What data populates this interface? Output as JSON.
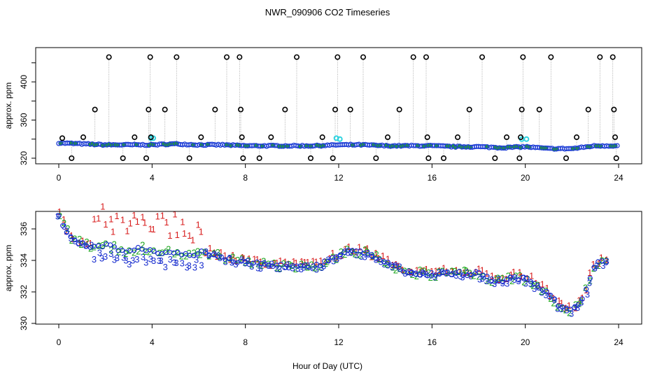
{
  "chart_data": [
    {
      "type": "scatter",
      "panel": "top",
      "title": "NWR_090906  CO2 Timeseries",
      "xlabel": "",
      "ylabel": "approx. ppm",
      "xlim": [
        0,
        24
      ],
      "ylim": [
        318,
        432
      ],
      "xticks": [
        "0",
        "4",
        "8",
        "12",
        "16",
        "20",
        "24"
      ],
      "yticks": [
        "320",
        "360",
        "400"
      ],
      "ytick_values": [
        320,
        340,
        360,
        380,
        400,
        420
      ],
      "colors": {
        "baseline": "#1f3fd6",
        "baseline_fill": "#23a823",
        "spikes": "#000000",
        "cyan": "#2ed3e0",
        "connector": "#999999"
      },
      "baseline": {
        "x": [
          0,
          1,
          2,
          3,
          4,
          5,
          6,
          7,
          8,
          9,
          10,
          11,
          12,
          13,
          14,
          15,
          16,
          17,
          18,
          19,
          20,
          21,
          22,
          23,
          24
        ],
        "y": [
          336,
          335,
          334,
          334,
          334,
          335,
          334,
          334,
          333,
          333,
          333,
          333,
          334,
          334,
          333,
          333,
          333,
          332,
          332,
          331,
          332,
          330,
          330,
          333,
          333
        ]
      },
      "spike_points": [
        {
          "x": 0.15,
          "y": 341
        },
        {
          "x": 0.55,
          "y": 320
        },
        {
          "x": 1.05,
          "y": 342
        },
        {
          "x": 1.55,
          "y": 371
        },
        {
          "x": 2.15,
          "y": 426
        },
        {
          "x": 2.75,
          "y": 320
        },
        {
          "x": 3.25,
          "y": 342
        },
        {
          "x": 3.75,
          "y": 320
        },
        {
          "x": 3.85,
          "y": 371
        },
        {
          "x": 3.92,
          "y": 426
        },
        {
          "x": 3.95,
          "y": 342
        },
        {
          "x": 4.55,
          "y": 371
        },
        {
          "x": 5.05,
          "y": 426
        },
        {
          "x": 5.6,
          "y": 320
        },
        {
          "x": 6.1,
          "y": 342
        },
        {
          "x": 6.7,
          "y": 371
        },
        {
          "x": 7.2,
          "y": 426
        },
        {
          "x": 7.75,
          "y": 426
        },
        {
          "x": 7.8,
          "y": 371
        },
        {
          "x": 7.85,
          "y": 342
        },
        {
          "x": 7.9,
          "y": 320
        },
        {
          "x": 8.6,
          "y": 320
        },
        {
          "x": 9.1,
          "y": 342
        },
        {
          "x": 9.7,
          "y": 371
        },
        {
          "x": 10.2,
          "y": 426
        },
        {
          "x": 10.8,
          "y": 320
        },
        {
          "x": 11.3,
          "y": 342
        },
        {
          "x": 11.75,
          "y": 320
        },
        {
          "x": 11.85,
          "y": 371
        },
        {
          "x": 11.95,
          "y": 426
        },
        {
          "x": 12.5,
          "y": 371
        },
        {
          "x": 13.05,
          "y": 426
        },
        {
          "x": 13.6,
          "y": 320
        },
        {
          "x": 14.1,
          "y": 342
        },
        {
          "x": 14.6,
          "y": 371
        },
        {
          "x": 15.2,
          "y": 426
        },
        {
          "x": 15.75,
          "y": 426
        },
        {
          "x": 15.8,
          "y": 342
        },
        {
          "x": 15.85,
          "y": 320
        },
        {
          "x": 16.5,
          "y": 320
        },
        {
          "x": 17.1,
          "y": 342
        },
        {
          "x": 17.6,
          "y": 371
        },
        {
          "x": 18.15,
          "y": 426
        },
        {
          "x": 18.7,
          "y": 320
        },
        {
          "x": 19.2,
          "y": 342
        },
        {
          "x": 19.75,
          "y": 320
        },
        {
          "x": 19.8,
          "y": 342
        },
        {
          "x": 19.85,
          "y": 371
        },
        {
          "x": 19.9,
          "y": 426
        },
        {
          "x": 20.6,
          "y": 371
        },
        {
          "x": 21.1,
          "y": 426
        },
        {
          "x": 21.75,
          "y": 320
        },
        {
          "x": 22.2,
          "y": 342
        },
        {
          "x": 22.7,
          "y": 371
        },
        {
          "x": 23.2,
          "y": 426
        },
        {
          "x": 23.75,
          "y": 426
        },
        {
          "x": 23.8,
          "y": 371
        },
        {
          "x": 23.85,
          "y": 342
        },
        {
          "x": 23.9,
          "y": 320
        }
      ],
      "cyan_points": [
        {
          "x": 3.95,
          "y": 341
        },
        {
          "x": 4.05,
          "y": 341
        },
        {
          "x": 11.9,
          "y": 341
        },
        {
          "x": 12.05,
          "y": 340
        },
        {
          "x": 19.85,
          "y": 340
        },
        {
          "x": 20.05,
          "y": 340
        }
      ]
    },
    {
      "type": "scatter",
      "panel": "bottom",
      "title": "",
      "xlabel": "Hour of Day (UTC)",
      "ylabel": "approx. ppm",
      "xlim": [
        -1,
        25
      ],
      "ylim": [
        329.8,
        337.5
      ],
      "xticks": [
        "0",
        "4",
        "8",
        "12",
        "16",
        "20",
        "24"
      ],
      "yticks": [
        "330",
        "332",
        "334",
        "336"
      ],
      "legend": "none",
      "colors": {
        "series_1": "#d81e1e",
        "series_2": "#1aa61a",
        "series_3": "#1a2fcf",
        "circles": "#1a2fcf"
      },
      "series_labels": [
        "1",
        "2",
        "3"
      ],
      "trend": {
        "x": [
          0,
          0.5,
          1,
          1.5,
          2,
          2.5,
          3,
          3.5,
          4,
          4.5,
          5,
          5.5,
          6,
          6.5,
          7,
          7.5,
          8,
          9,
          10,
          11,
          12,
          12.5,
          13,
          13.5,
          14,
          15,
          16,
          17,
          18,
          18.5,
          19,
          19.5,
          20,
          20.5,
          21,
          21.5,
          22,
          22.5,
          23,
          23.6
        ],
        "y": [
          336.8,
          335.4,
          335.0,
          334.9,
          335.0,
          334.7,
          334.5,
          334.8,
          334.6,
          334.4,
          334.6,
          334.3,
          334.5,
          334.4,
          334.2,
          334.0,
          333.9,
          333.7,
          333.6,
          333.6,
          334.3,
          334.6,
          334.5,
          334.2,
          333.9,
          333.2,
          333.1,
          333.2,
          333.1,
          332.8,
          332.7,
          332.9,
          332.8,
          332.4,
          331.9,
          331.0,
          330.8,
          331.6,
          333.8,
          334.0
        ]
      }
    }
  ]
}
